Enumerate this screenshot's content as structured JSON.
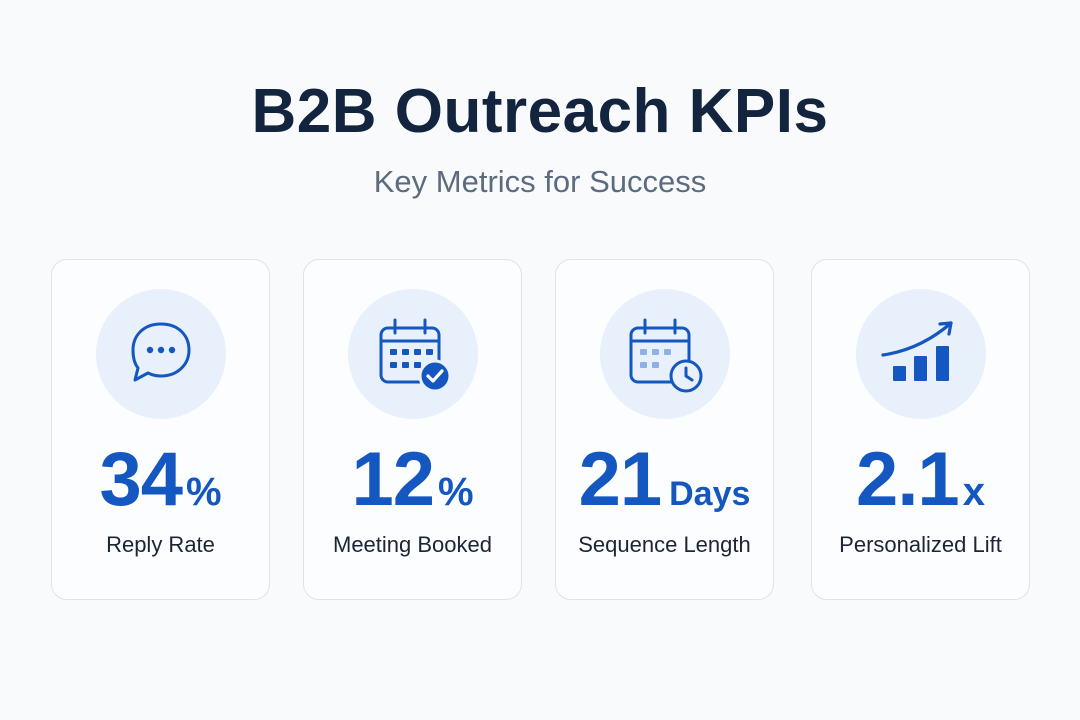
{
  "header": {
    "title": "B2B Outreach KPIs",
    "subtitle": "Key Metrics for Success"
  },
  "colors": {
    "accent": "#1557c0",
    "title": "#13243f",
    "subtitle": "#5d6b7e",
    "icon_bg": "#e8f0fb",
    "card_border": "#dde3ee"
  },
  "cards": [
    {
      "icon": "chat-bubble-icon",
      "value": "34",
      "unit": "%",
      "label": "Reply Rate"
    },
    {
      "icon": "calendar-check-icon",
      "value": "12",
      "unit": "%",
      "label": "Meeting Booked"
    },
    {
      "icon": "calendar-clock-icon",
      "value": "21",
      "unit": "Days",
      "label": "Sequence Length"
    },
    {
      "icon": "growth-bar-chart-icon",
      "value": "2.1",
      "unit": "x",
      "label": "Personalized Lift"
    }
  ]
}
